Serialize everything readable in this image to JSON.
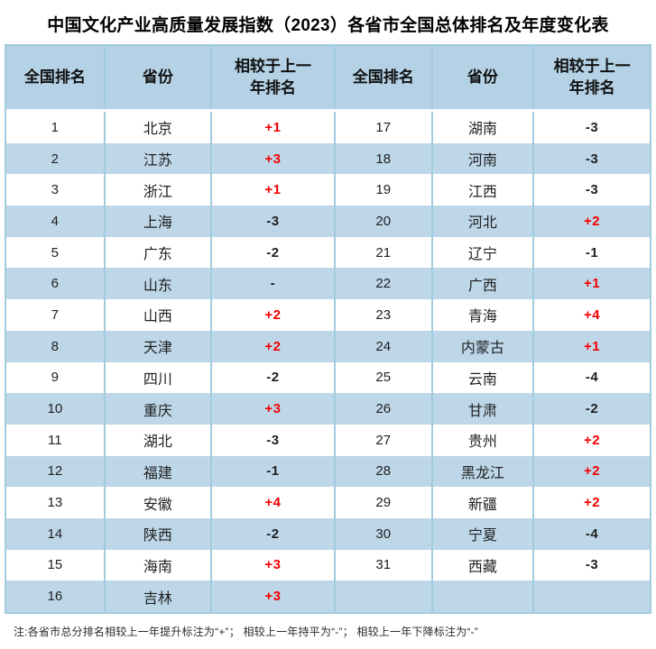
{
  "footnote": "注:各省市总分排名相较上一年提升标注为“+”； 相较上一年持平为“-”； 相较上一年下降标注为“-”",
  "colors": {
    "header_bg": "#b4d1e5",
    "stripe_bg": "#bdd7e9",
    "divider": "#a2cbdd",
    "up_red": "#f40000",
    "text_dark": "#1f1f1f"
  },
  "chart_data": {
    "type": "table",
    "title": "中国文化产业高质量发展指数（2023）各省市全国总体排名及年度变化表",
    "columns": [
      "全国排名",
      "省份",
      "相较于上一年排名",
      "全国排名",
      "省份",
      "相较于上一年排名"
    ],
    "rows": [
      {
        "left": {
          "rank": "1",
          "province": "北京",
          "change": "+1"
        },
        "right": {
          "rank": "17",
          "province": "湖南",
          "change": "-3"
        }
      },
      {
        "left": {
          "rank": "2",
          "province": "江苏",
          "change": "+3"
        },
        "right": {
          "rank": "18",
          "province": "河南",
          "change": "-3"
        }
      },
      {
        "left": {
          "rank": "3",
          "province": "浙江",
          "change": "+1"
        },
        "right": {
          "rank": "19",
          "province": "江西",
          "change": "-3"
        }
      },
      {
        "left": {
          "rank": "4",
          "province": "上海",
          "change": "-3"
        },
        "right": {
          "rank": "20",
          "province": "河北",
          "change": "+2"
        }
      },
      {
        "left": {
          "rank": "5",
          "province": "广东",
          "change": "-2"
        },
        "right": {
          "rank": "21",
          "province": "辽宁",
          "change": "-1"
        }
      },
      {
        "left": {
          "rank": "6",
          "province": "山东",
          "change": "-"
        },
        "right": {
          "rank": "22",
          "province": "广西",
          "change": "+1"
        }
      },
      {
        "left": {
          "rank": "7",
          "province": "山西",
          "change": "+2"
        },
        "right": {
          "rank": "23",
          "province": "青海",
          "change": "+4"
        }
      },
      {
        "left": {
          "rank": "8",
          "province": "天津",
          "change": "+2"
        },
        "right": {
          "rank": "24",
          "province": "内蒙古",
          "change": "+1"
        }
      },
      {
        "left": {
          "rank": "9",
          "province": "四川",
          "change": "-2"
        },
        "right": {
          "rank": "25",
          "province": "云南",
          "change": "-4"
        }
      },
      {
        "left": {
          "rank": "10",
          "province": "重庆",
          "change": "+3"
        },
        "right": {
          "rank": "26",
          "province": "甘肃",
          "change": "-2"
        }
      },
      {
        "left": {
          "rank": "11",
          "province": "湖北",
          "change": "-3"
        },
        "right": {
          "rank": "27",
          "province": "贵州",
          "change": "+2"
        }
      },
      {
        "left": {
          "rank": "12",
          "province": "福建",
          "change": "-1"
        },
        "right": {
          "rank": "28",
          "province": "黑龙江",
          "change": "+2"
        }
      },
      {
        "left": {
          "rank": "13",
          "province": "安徽",
          "change": "+4"
        },
        "right": {
          "rank": "29",
          "province": "新疆",
          "change": "+2"
        }
      },
      {
        "left": {
          "rank": "14",
          "province": "陕西",
          "change": "-2"
        },
        "right": {
          "rank": "30",
          "province": "宁夏",
          "change": "-4"
        }
      },
      {
        "left": {
          "rank": "15",
          "province": "海南",
          "change": "+3"
        },
        "right": {
          "rank": "31",
          "province": "西藏",
          "change": "-3"
        }
      },
      {
        "left": {
          "rank": "16",
          "province": "吉林",
          "change": "+3"
        },
        "right": {
          "rank": "",
          "province": "",
          "change": ""
        }
      }
    ]
  }
}
